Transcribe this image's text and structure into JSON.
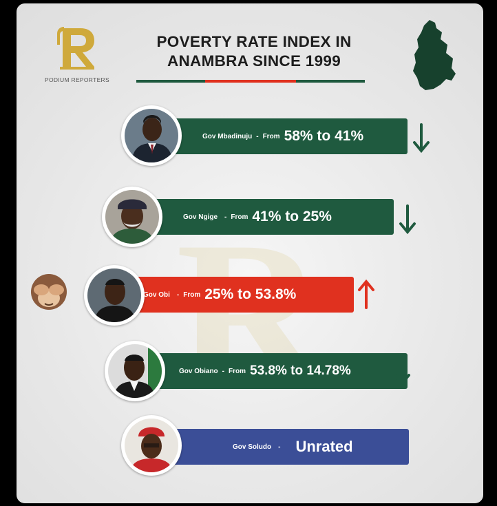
{
  "brand": {
    "logo_letter": "R",
    "logo_name": "PODIUM REPORTERS"
  },
  "header": {
    "title_line1": "POVERTY RATE INDEX IN",
    "title_line2": "ANAMBRA SINCE 1999"
  },
  "colors": {
    "green": "#1f5a3f",
    "red": "#e0311f",
    "blue": "#3b4e97",
    "gold": "#cfa93b"
  },
  "governors": [
    {
      "name": "Gov Mbadinuju",
      "sep": "-",
      "from_label": "From",
      "range": "58% to 41%",
      "from_pct": 58,
      "to_pct": 41,
      "trend": "down",
      "arrow_icon": "arrow-down-icon"
    },
    {
      "name": "Gov Ngige",
      "sep": "-",
      "from_label": "From",
      "range": "41% to 25%",
      "from_pct": 41,
      "to_pct": 25,
      "trend": "down",
      "arrow_icon": "arrow-down-icon"
    },
    {
      "name": "Gov Obi",
      "sep": "-",
      "from_label": "From",
      "range": "25% to 53.8%",
      "from_pct": 25,
      "to_pct": 53.8,
      "trend": "up",
      "arrow_icon": "arrow-up-icon"
    },
    {
      "name": "Gov Obiano",
      "sep": "-",
      "from_label": "From",
      "range": "53.8% to 14.78%",
      "from_pct": 53.8,
      "to_pct": 14.78,
      "trend": "down",
      "arrow_icon": "arrow-down-icon"
    },
    {
      "name": "Gov Soludo",
      "sep": "-",
      "status": "Unrated"
    }
  ]
}
